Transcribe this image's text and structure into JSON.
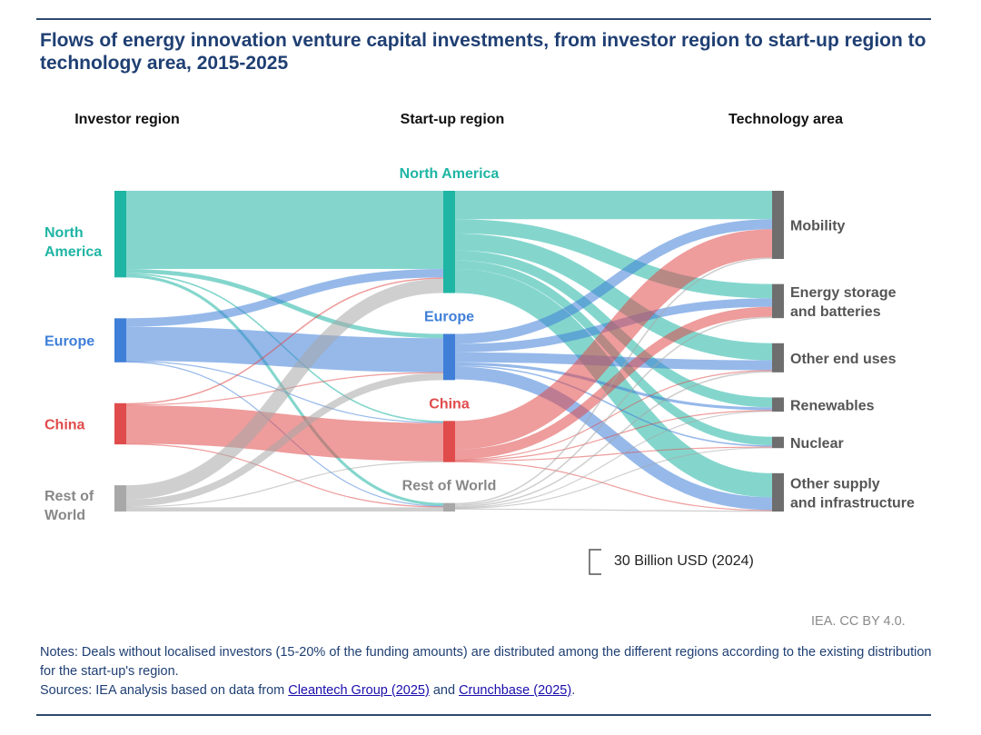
{
  "title": "Flows of energy innovation venture capital investments, from investor region to start-up region to technology area, 2015-2025",
  "column_headers": [
    "Investor region",
    "Start-up region",
    "Technology area"
  ],
  "colors": {
    "north_america": "#1fb5a4",
    "europe": "#3f7fd8",
    "china": "#e04b4b",
    "rest_of_world": "#a8a8a8",
    "technology": "#6e6e6e",
    "title": "#1f3f73"
  },
  "chart_data": {
    "type": "sankey",
    "unit": "Billion USD (2024)",
    "scale_legend": "30 Billion USD (2024)",
    "columns": [
      {
        "name": "Investor region",
        "nodes": [
          "North America",
          "Europe",
          "China",
          "Rest of World"
        ]
      },
      {
        "name": "Start-up region",
        "nodes": [
          "North America",
          "Europe",
          "China",
          "Rest of World"
        ]
      },
      {
        "name": "Technology area",
        "nodes": [
          "Mobility",
          "Energy storage and batteries",
          "Other end uses",
          "Renewables",
          "Nuclear",
          "Other supply and infrastructure"
        ]
      }
    ],
    "node_labels": {
      "inv_na": "North America",
      "inv_eu": "Europe",
      "inv_cn": "China",
      "inv_row": "Rest of World",
      "st_na": "North America",
      "st_eu": "Europe",
      "st_cn": "China",
      "st_row": "Rest of World",
      "t_mob": "Mobility",
      "t_es": "Energy storage and batteries",
      "t_oeu": "Other end uses",
      "t_ren": "Renewables",
      "t_nuc": "Nuclear",
      "t_osi": "Other supply and infrastructure"
    },
    "links": [
      {
        "source": "inv_na",
        "target": "st_na",
        "value": 55
      },
      {
        "source": "inv_na",
        "target": "st_eu",
        "value": 3
      },
      {
        "source": "inv_na",
        "target": "st_cn",
        "value": 1
      },
      {
        "source": "inv_na",
        "target": "st_row",
        "value": 2
      },
      {
        "source": "inv_eu",
        "target": "st_na",
        "value": 6
      },
      {
        "source": "inv_eu",
        "target": "st_eu",
        "value": 24
      },
      {
        "source": "inv_eu",
        "target": "st_cn",
        "value": 0.5
      },
      {
        "source": "inv_eu",
        "target": "st_row",
        "value": 0.5
      },
      {
        "source": "inv_cn",
        "target": "st_na",
        "value": 1
      },
      {
        "source": "inv_cn",
        "target": "st_eu",
        "value": 0.5
      },
      {
        "source": "inv_cn",
        "target": "st_cn",
        "value": 27
      },
      {
        "source": "inv_cn",
        "target": "st_row",
        "value": 0.5
      },
      {
        "source": "inv_row",
        "target": "st_na",
        "value": 10
      },
      {
        "source": "inv_row",
        "target": "st_eu",
        "value": 5
      },
      {
        "source": "inv_row",
        "target": "st_cn",
        "value": 0.5
      },
      {
        "source": "inv_row",
        "target": "st_row",
        "value": 3
      },
      {
        "source": "st_na",
        "target": "t_mob",
        "value": 20
      },
      {
        "source": "st_na",
        "target": "t_es",
        "value": 10
      },
      {
        "source": "st_na",
        "target": "t_oeu",
        "value": 12
      },
      {
        "source": "st_na",
        "target": "t_ren",
        "value": 7
      },
      {
        "source": "st_na",
        "target": "t_nuc",
        "value": 6
      },
      {
        "source": "st_na",
        "target": "t_osi",
        "value": 17
      },
      {
        "source": "st_eu",
        "target": "t_mob",
        "value": 7
      },
      {
        "source": "st_eu",
        "target": "t_es",
        "value": 6
      },
      {
        "source": "st_eu",
        "target": "t_oeu",
        "value": 7
      },
      {
        "source": "st_eu",
        "target": "t_ren",
        "value": 2
      },
      {
        "source": "st_eu",
        "target": "t_nuc",
        "value": 1
      },
      {
        "source": "st_eu",
        "target": "t_osi",
        "value": 9
      },
      {
        "source": "st_cn",
        "target": "t_mob",
        "value": 20
      },
      {
        "source": "st_cn",
        "target": "t_es",
        "value": 7
      },
      {
        "source": "st_cn",
        "target": "t_oeu",
        "value": 0.5
      },
      {
        "source": "st_cn",
        "target": "t_ren",
        "value": 0.5
      },
      {
        "source": "st_cn",
        "target": "t_nuc",
        "value": 0.5
      },
      {
        "source": "st_cn",
        "target": "t_osi",
        "value": 0.5
      },
      {
        "source": "st_row",
        "target": "t_mob",
        "value": 1
      },
      {
        "source": "st_row",
        "target": "t_es",
        "value": 1
      },
      {
        "source": "st_row",
        "target": "t_oeu",
        "value": 1
      },
      {
        "source": "st_row",
        "target": "t_ren",
        "value": 0.5
      },
      {
        "source": "st_row",
        "target": "t_nuc",
        "value": 0.5
      },
      {
        "source": "st_row",
        "target": "t_osi",
        "value": 0.5
      }
    ]
  },
  "credit": "IEA. CC BY 4.0.",
  "notes": "Notes: Deals without localised investors (15-20% of the funding amounts) are distributed among the different regions according to the existing distribution for the start-up's region.",
  "sources": {
    "prefix": "Sources: IEA analysis based on data from ",
    "link1": "Cleantech Group (2025)",
    "middle": " and ",
    "link2": "Crunchbase (2025)",
    "suffix": "."
  }
}
